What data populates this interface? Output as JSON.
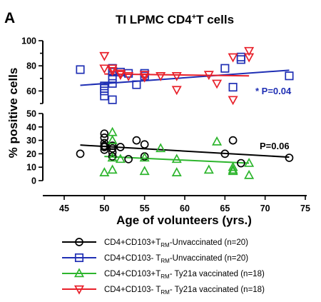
{
  "figure": {
    "panel_letter": "A",
    "title_main": "TI LPMC CD4",
    "title_sup": "+",
    "title_tail": "T cells",
    "ylabel": "% positive cells",
    "xlabel": "Age of volunteers (yrs.)"
  },
  "chart_data": {
    "type": "scatter",
    "xlim": [
      45,
      75
    ],
    "x_ticks": [
      45,
      50,
      55,
      60,
      65,
      70,
      75
    ],
    "ylim_bottom": [
      0,
      50
    ],
    "ylim_top": [
      50,
      100
    ],
    "y_ticks_bottom": [
      0,
      10,
      20,
      30,
      40,
      50
    ],
    "y_ticks_top": [
      60,
      80,
      100
    ],
    "broken_y_axis": true,
    "grid": false,
    "legend_position": "bottom",
    "series": [
      {
        "legend_pre": "CD4+CD103+T",
        "legend_sub": "RM",
        "legend_post": "-Unvaccinated (n=20)",
        "color": "#000000",
        "marker": "circle",
        "points": [
          [
            47,
            20
          ],
          [
            50,
            35
          ],
          [
            50,
            32
          ],
          [
            50,
            28
          ],
          [
            50,
            26
          ],
          [
            50,
            25
          ],
          [
            50,
            23
          ],
          [
            51,
            26
          ],
          [
            51,
            24
          ],
          [
            51,
            21
          ],
          [
            51,
            18
          ],
          [
            52,
            25
          ],
          [
            53,
            16
          ],
          [
            54,
            30
          ],
          [
            55,
            27
          ],
          [
            55,
            18
          ],
          [
            65,
            20
          ],
          [
            66,
            30
          ],
          [
            67,
            13
          ],
          [
            73,
            17
          ]
        ],
        "fit": [
          [
            47,
            26.5
          ],
          [
            73,
            17.5
          ]
        ]
      },
      {
        "legend_pre": "CD4+CD103- T",
        "legend_sub": "RM",
        "legend_post": "-Unvaccinated (n=20)",
        "color": "#1f2fb4",
        "marker": "square",
        "points": [
          [
            47,
            77
          ],
          [
            50,
            64
          ],
          [
            50,
            62
          ],
          [
            50,
            60
          ],
          [
            50,
            56
          ],
          [
            51,
            78
          ],
          [
            51,
            75
          ],
          [
            51,
            70
          ],
          [
            51,
            66
          ],
          [
            51,
            53
          ],
          [
            52,
            75
          ],
          [
            53,
            74
          ],
          [
            54,
            65
          ],
          [
            55,
            74
          ],
          [
            55,
            72
          ],
          [
            65,
            78
          ],
          [
            66,
            63
          ],
          [
            67,
            87
          ],
          [
            67,
            85
          ],
          [
            73,
            72
          ]
        ],
        "fit": [
          [
            47,
            64.5
          ],
          [
            73,
            76.5
          ]
        ],
        "annotation": "* P=0.04"
      },
      {
        "legend_pre": "CD4+CD103+T",
        "legend_sub": "RM",
        "legend_post": "- Ty21a vaccinated (n=18)",
        "color": "#2db52d",
        "marker": "triangle-up",
        "points": [
          [
            50,
            6
          ],
          [
            51,
            36
          ],
          [
            51,
            30
          ],
          [
            51,
            17
          ],
          [
            51,
            8
          ],
          [
            52,
            16
          ],
          [
            55,
            17
          ],
          [
            55,
            7
          ],
          [
            57,
            24
          ],
          [
            59,
            16
          ],
          [
            59,
            6
          ],
          [
            63,
            8
          ],
          [
            64,
            29
          ],
          [
            66,
            10
          ],
          [
            66,
            8
          ],
          [
            66,
            7
          ],
          [
            68,
            13
          ],
          [
            68,
            4
          ]
        ],
        "fit": [
          [
            50,
            18
          ],
          [
            68,
            13
          ]
        ]
      },
      {
        "legend_pre": "CD4+CD103- T",
        "legend_sub": "RM",
        "legend_post": "- Ty21a vaccinated (n=18)",
        "color": "#e8202a",
        "marker": "triangle-down",
        "points": [
          [
            50,
            88
          ],
          [
            50,
            78
          ],
          [
            51,
            78
          ],
          [
            52,
            74
          ],
          [
            53,
            72
          ],
          [
            55,
            73
          ],
          [
            57,
            72
          ],
          [
            59,
            72
          ],
          [
            59,
            61
          ],
          [
            63,
            73
          ],
          [
            64,
            66
          ],
          [
            66,
            87
          ],
          [
            66,
            53
          ],
          [
            68,
            92
          ],
          [
            68,
            87
          ],
          [
            51,
            76
          ],
          [
            52,
            73
          ],
          [
            55,
            71
          ]
        ],
        "fit": [
          [
            50,
            73.5
          ],
          [
            68,
            72
          ]
        ],
        "annotation": "P=0.06"
      }
    ]
  }
}
